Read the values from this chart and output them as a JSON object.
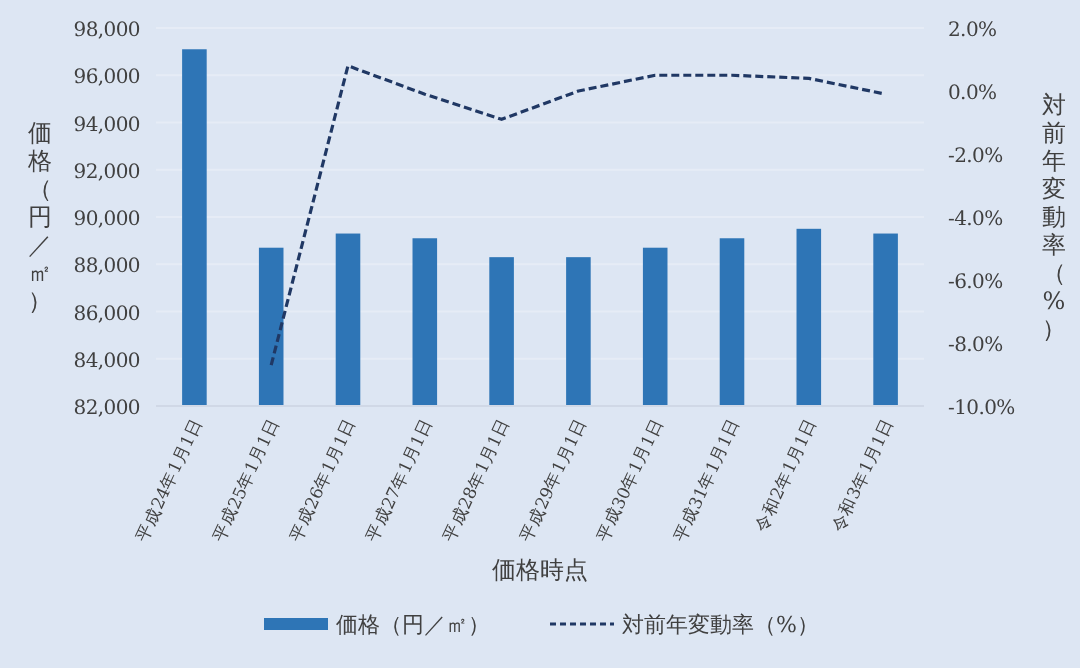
{
  "chart_data": {
    "type": "bar",
    "xlabel": "価格時点",
    "ylabel": "価格（円／㎡）",
    "y2label": "対前年変動率（%）",
    "categories": [
      "平成24年1月1日",
      "平成25年1月1日",
      "平成26年1月1日",
      "平成27年1月1日",
      "平成28年1月1日",
      "平成29年1月1日",
      "平成30年1月1日",
      "平成31年1月1日",
      "令和2年1月1日",
      "令和3年1月1日"
    ],
    "series": [
      {
        "name": "価格（円／㎡）",
        "color": "#2e75b6",
        "values": [
          97100,
          88700,
          89300,
          89100,
          88300,
          88300,
          88700,
          89100,
          89500,
          89300
        ]
      },
      {
        "name": "対前年変動率（%）",
        "type": "line",
        "axis": "y2",
        "color": "#203864",
        "line_style": "dashed",
        "marker": "none",
        "values": [
          null,
          -8.7,
          0.8,
          -0.1,
          -0.9,
          0.0,
          0.5,
          0.5,
          0.4,
          -0.1
        ]
      }
    ],
    "ylim": [
      82000,
      98000
    ],
    "yticks": [
      {
        "value": 82000,
        "label": "82,000"
      },
      {
        "value": 84000,
        "label": "84,000"
      },
      {
        "value": 86000,
        "label": "86,000"
      },
      {
        "value": 88000,
        "label": "88,000"
      },
      {
        "value": 90000,
        "label": "90,000"
      },
      {
        "value": 92000,
        "label": "92,000"
      },
      {
        "value": 94000,
        "label": "94,000"
      },
      {
        "value": 96000,
        "label": "96,000"
      },
      {
        "value": 98000,
        "label": "98,000"
      }
    ],
    "y2lim": [
      -10,
      2
    ],
    "y2ticks": [
      {
        "value": -10,
        "label": "-10.0%"
      },
      {
        "value": -8,
        "label": "-8.0%"
      },
      {
        "value": -6,
        "label": "-6.0%"
      },
      {
        "value": -4,
        "label": "-4.0%"
      },
      {
        "value": -2,
        "label": "-2.0%"
      },
      {
        "value": 0,
        "label": "0.0%"
      },
      {
        "value": 2,
        "label": "2.0%"
      }
    ],
    "grid": "y",
    "legend": "bottom"
  }
}
